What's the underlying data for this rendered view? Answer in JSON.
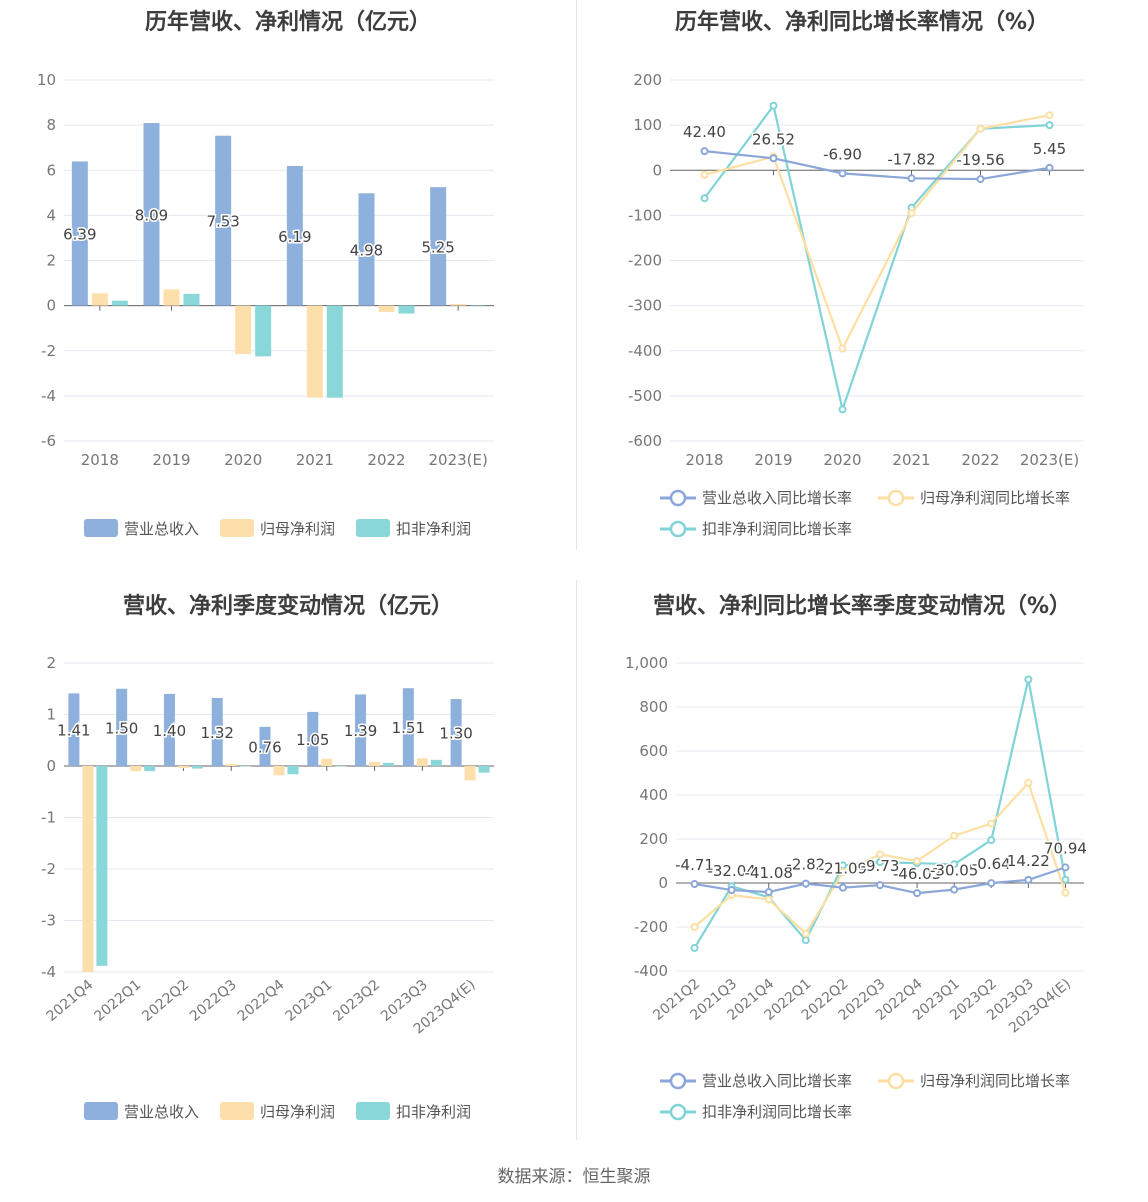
{
  "source_text": "数据来源：恒生聚源",
  "chart_data": [
    {
      "type": "bar",
      "title": "历年营收、净利情况（亿元）",
      "categories": [
        "2018",
        "2019",
        "2020",
        "2021",
        "2022",
        "2023(E)"
      ],
      "ylim": [
        -6,
        10
      ],
      "yticks": [
        -6,
        -4,
        -2,
        0,
        2,
        4,
        6,
        8,
        10
      ],
      "grid": true,
      "legend_position": "bottom",
      "series": [
        {
          "name": "营业总收入",
          "color": "#8eb0dd",
          "values": [
            6.39,
            8.09,
            7.53,
            6.19,
            4.98,
            5.25
          ],
          "labels": [
            "6.39",
            "8.09",
            "7.53",
            "6.19",
            "4.98",
            "5.25"
          ]
        },
        {
          "name": "归母净利润",
          "color": "#fddfac",
          "values": [
            0.55,
            0.72,
            -2.15,
            -4.08,
            -0.28,
            0.07
          ]
        },
        {
          "name": "扣非净利润",
          "color": "#8ad7d9",
          "values": [
            0.22,
            0.52,
            -2.25,
            -4.08,
            -0.35,
            0.0
          ]
        }
      ]
    },
    {
      "type": "line",
      "title": "历年营收、净利同比增长率情况（%）",
      "categories": [
        "2018",
        "2019",
        "2020",
        "2021",
        "2022",
        "2023(E)"
      ],
      "ylim": [
        -600,
        200
      ],
      "yticks": [
        -600,
        -500,
        -400,
        -300,
        -200,
        -100,
        0,
        100,
        200
      ],
      "grid": true,
      "legend_position": "bottom",
      "series": [
        {
          "name": "营业总收入同比增长率",
          "color": "#8ba6d8",
          "values": [
            42.4,
            26.52,
            -6.9,
            -17.82,
            -19.56,
            5.45
          ],
          "labels": [
            "42.40",
            "26.52",
            "-6.90",
            "-17.82",
            "-19.56",
            "5.45"
          ]
        },
        {
          "name": "归母净利润同比增长率",
          "color": "#fddfa2",
          "values": [
            -10,
            30,
            -395,
            -95,
            92,
            122
          ]
        },
        {
          "name": "扣非净利润同比增长率",
          "color": "#80d3d6",
          "values": [
            -62,
            143,
            -530,
            -83,
            92,
            100
          ]
        }
      ]
    },
    {
      "type": "bar",
      "title": "营收、净利季度变动情况（亿元）",
      "categories": [
        "2021Q4",
        "2022Q1",
        "2022Q2",
        "2022Q3",
        "2022Q4",
        "2023Q1",
        "2023Q2",
        "2023Q3",
        "2023Q4(E)"
      ],
      "ylim": [
        -4,
        2
      ],
      "yticks": [
        -4,
        -3,
        -2,
        -1,
        0,
        1,
        2
      ],
      "grid": true,
      "legend_position": "bottom",
      "series": [
        {
          "name": "营业总收入",
          "color": "#8eb0dd",
          "values": [
            1.41,
            1.5,
            1.4,
            1.32,
            0.76,
            1.05,
            1.39,
            1.51,
            1.3
          ],
          "labels": [
            "1.41",
            "1.50",
            "1.40",
            "1.32",
            "0.76",
            "1.05",
            "1.39",
            "1.51",
            "1.30"
          ]
        },
        {
          "name": "归母净利润",
          "color": "#fddfac",
          "values": [
            -4.0,
            -0.1,
            -0.04,
            0.04,
            -0.18,
            0.14,
            0.08,
            0.15,
            -0.28
          ]
        },
        {
          "name": "扣非净利润",
          "color": "#8ad7d9",
          "values": [
            -3.88,
            -0.1,
            -0.05,
            0.0,
            -0.16,
            0.0,
            0.06,
            0.12,
            -0.13
          ]
        }
      ]
    },
    {
      "type": "line",
      "title": "营收、净利同比增长率季度变动情况（%）",
      "categories": [
        "2021Q2",
        "2021Q3",
        "2021Q4",
        "2022Q1",
        "2022Q2",
        "2022Q3",
        "2022Q4",
        "2023Q1",
        "2023Q2",
        "2023Q3",
        "2023Q4(E)"
      ],
      "ylim": [
        -400,
        1000
      ],
      "yticks": [
        -400,
        -200,
        0,
        200,
        400,
        600,
        800,
        1000
      ],
      "ytick_labels": [
        "-400",
        "-200",
        "0",
        "200",
        "400",
        "600",
        "800",
        "1,000"
      ],
      "grid": true,
      "legend_position": "bottom",
      "series": [
        {
          "name": "营业总收入同比增长率",
          "color": "#8ba6d8",
          "values": [
            -4.71,
            -32.04,
            -41.08,
            -2.82,
            -21.09,
            -9.73,
            -46.03,
            -30.05,
            -0.64,
            14.22,
            70.94
          ],
          "labels": [
            "-4.71",
            "-32.04",
            "-41.08",
            "-2.82",
            "-21.09",
            "-9.73",
            "-46.03",
            "-30.05",
            "-0.64",
            "14.22",
            "70.94"
          ]
        },
        {
          "name": "归母净利润同比增长率",
          "color": "#fddfa2",
          "values": [
            -200,
            -55,
            -75,
            -230,
            50,
            130,
            100,
            215,
            270,
            455,
            -45
          ]
        },
        {
          "name": "扣非净利润同比增长率",
          "color": "#80d3d6",
          "values": [
            -295,
            -15,
            -65,
            -260,
            80,
            95,
            90,
            85,
            195,
            925,
            15
          ]
        }
      ]
    }
  ]
}
